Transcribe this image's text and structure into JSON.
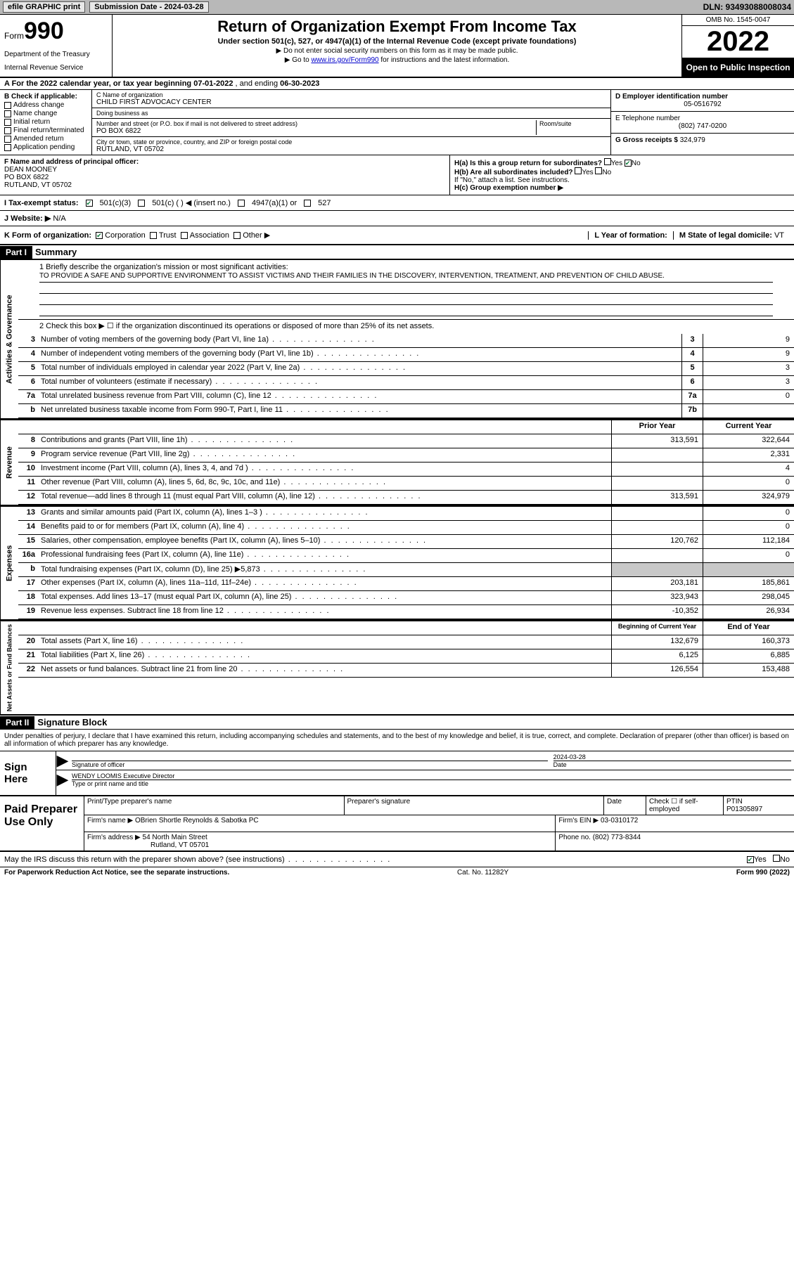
{
  "topbar": {
    "efile_label": "efile GRAPHIC print",
    "submission_label": "Submission Date - 2024-03-28",
    "dln": "DLN: 93493088008034"
  },
  "header": {
    "form_word": "Form",
    "form_number": "990",
    "title": "Return of Organization Exempt From Income Tax",
    "subtitle": "Under section 501(c), 527, or 4947(a)(1) of the Internal Revenue Code (except private foundations)",
    "note1": "▶ Do not enter social security numbers on this form as it may be made public.",
    "note2_prefix": "▶ Go to ",
    "note2_link": "www.irs.gov/Form990",
    "note2_suffix": " for instructions and the latest information.",
    "dept": "Department of the Treasury",
    "irs": "Internal Revenue Service",
    "omb": "OMB No. 1545-0047",
    "tax_year": "2022",
    "open_public": "Open to Public Inspection"
  },
  "row_a": {
    "prefix": "A For the 2022 calendar year, or tax year beginning ",
    "begin": "07-01-2022",
    "mid": " , and ending ",
    "end": "06-30-2023"
  },
  "col_b": {
    "header": "B Check if applicable:",
    "opts": [
      "Address change",
      "Name change",
      "Initial return",
      "Final return/terminated",
      "Amended return",
      "Application pending"
    ]
  },
  "col_c": {
    "name_label": "C Name of organization",
    "org_name": "CHILD FIRST ADVOCACY CENTER",
    "dba_label": "Doing business as",
    "dba": "",
    "street_label": "Number and street (or P.O. box if mail is not delivered to street address)",
    "room_label": "Room/suite",
    "street": "PO BOX 6822",
    "city_label": "City or town, state or province, country, and ZIP or foreign postal code",
    "city": "RUTLAND, VT  05702"
  },
  "col_de": {
    "d_label": "D Employer identification number",
    "ein": "05-0516792",
    "e_label": "E Telephone number",
    "phone": "(802) 747-0200",
    "g_label": "G Gross receipts $ ",
    "gross": "324,979"
  },
  "row_f": {
    "label": "F Name and address of principal officer:",
    "name": "DEAN MOONEY",
    "addr1": "PO BOX 6822",
    "addr2": "RUTLAND, VT  05702"
  },
  "row_h": {
    "ha_label": "H(a)  Is this a group return for subordinates?",
    "hb_label": "H(b)  Are all subordinates included?",
    "hb_note": "If \"No,\" attach a list. See instructions.",
    "hc_label": "H(c)  Group exemption number ▶",
    "yes": "Yes",
    "no": "No"
  },
  "row_i": {
    "label": "I  Tax-exempt status:",
    "opt1": "501(c)(3)",
    "opt2": "501(c) (  ) ◀ (insert no.)",
    "opt3": "4947(a)(1) or",
    "opt4": "527"
  },
  "row_j": {
    "label": "J  Website: ▶",
    "value": "  N/A"
  },
  "row_k": {
    "label": "K Form of organization:",
    "opts": [
      "Corporation",
      "Trust",
      "Association",
      "Other ▶"
    ],
    "l_label": "L Year of formation:",
    "l_val": "",
    "m_label": "M State of legal domicile: ",
    "m_val": "VT"
  },
  "part1": {
    "header": "Part I",
    "title": "Summary"
  },
  "mission": {
    "label": "1   Briefly describe the organization's mission or most significant activities:",
    "text": "TO PROVIDE A SAFE AND SUPPORTIVE ENVIRONMENT TO ASSIST VICTIMS AND THEIR FAMILIES IN THE DISCOVERY, INTERVENTION, TREATMENT, AND PREVENTION OF CHILD ABUSE."
  },
  "line2": "2   Check this box ▶ ☐  if the organization discontinued its operations or disposed of more than 25% of its net assets.",
  "governance_rows": [
    {
      "n": "3",
      "d": "Number of voting members of the governing body (Part VI, line 1a)",
      "box": "3",
      "v": "9"
    },
    {
      "n": "4",
      "d": "Number of independent voting members of the governing body (Part VI, line 1b)",
      "box": "4",
      "v": "9"
    },
    {
      "n": "5",
      "d": "Total number of individuals employed in calendar year 2022 (Part V, line 2a)",
      "box": "5",
      "v": "3"
    },
    {
      "n": "6",
      "d": "Total number of volunteers (estimate if necessary)",
      "box": "6",
      "v": "3"
    },
    {
      "n": "7a",
      "d": "Total unrelated business revenue from Part VIII, column (C), line 12",
      "box": "7a",
      "v": "0"
    },
    {
      "n": "b",
      "d": "Net unrelated business taxable income from Form 990-T, Part I, line 11",
      "box": "7b",
      "v": ""
    }
  ],
  "two_col_header": {
    "prior": "Prior Year",
    "current": "Current Year"
  },
  "revenue_rows": [
    {
      "n": "8",
      "d": "Contributions and grants (Part VIII, line 1h)",
      "p": "313,591",
      "c": "322,644"
    },
    {
      "n": "9",
      "d": "Program service revenue (Part VIII, line 2g)",
      "p": "",
      "c": "2,331"
    },
    {
      "n": "10",
      "d": "Investment income (Part VIII, column (A), lines 3, 4, and 7d )",
      "p": "",
      "c": "4"
    },
    {
      "n": "11",
      "d": "Other revenue (Part VIII, column (A), lines 5, 6d, 8c, 9c, 10c, and 11e)",
      "p": "",
      "c": "0"
    },
    {
      "n": "12",
      "d": "Total revenue—add lines 8 through 11 (must equal Part VIII, column (A), line 12)",
      "p": "313,591",
      "c": "324,979"
    }
  ],
  "expense_rows": [
    {
      "n": "13",
      "d": "Grants and similar amounts paid (Part IX, column (A), lines 1–3 )",
      "p": "",
      "c": "0"
    },
    {
      "n": "14",
      "d": "Benefits paid to or for members (Part IX, column (A), line 4)",
      "p": "",
      "c": "0"
    },
    {
      "n": "15",
      "d": "Salaries, other compensation, employee benefits (Part IX, column (A), lines 5–10)",
      "p": "120,762",
      "c": "112,184"
    },
    {
      "n": "16a",
      "d": "Professional fundraising fees (Part IX, column (A), line 11e)",
      "p": "",
      "c": "0"
    },
    {
      "n": "b",
      "d": "Total fundraising expenses (Part IX, column (D), line 25) ▶5,873",
      "p": "SHADE",
      "c": "SHADE"
    },
    {
      "n": "17",
      "d": "Other expenses (Part IX, column (A), lines 11a–11d, 11f–24e)",
      "p": "203,181",
      "c": "185,861"
    },
    {
      "n": "18",
      "d": "Total expenses. Add lines 13–17 (must equal Part IX, column (A), line 25)",
      "p": "323,943",
      "c": "298,045"
    },
    {
      "n": "19",
      "d": "Revenue less expenses. Subtract line 18 from line 12",
      "p": "-10,352",
      "c": "26,934"
    }
  ],
  "net_header": {
    "begin": "Beginning of Current Year",
    "end": "End of Year"
  },
  "net_rows": [
    {
      "n": "20",
      "d": "Total assets (Part X, line 16)",
      "p": "132,679",
      "c": "160,373"
    },
    {
      "n": "21",
      "d": "Total liabilities (Part X, line 26)",
      "p": "6,125",
      "c": "6,885"
    },
    {
      "n": "22",
      "d": "Net assets or fund balances. Subtract line 21 from line 20",
      "p": "126,554",
      "c": "153,488"
    }
  ],
  "vert_labels": {
    "gov": "Activities & Governance",
    "rev": "Revenue",
    "exp": "Expenses",
    "net": "Net Assets or Fund Balances"
  },
  "part2": {
    "header": "Part II",
    "title": "Signature Block"
  },
  "sig_decl": "Under penalties of perjury, I declare that I have examined this return, including accompanying schedules and statements, and to the best of my knowledge and belief, it is true, correct, and complete. Declaration of preparer (other than officer) is based on all information of which preparer has any knowledge.",
  "sign_here": "Sign Here",
  "sig_officer_label": "Signature of officer",
  "sig_date": "2024-03-28",
  "sig_date_label": "Date",
  "sig_name": "WENDY LOOMIS  Executive Director",
  "sig_name_label": "Type or print name and title",
  "paid_prep": "Paid Preparer Use Only",
  "prep": {
    "print_label": "Print/Type preparer's name",
    "print_name": "",
    "sig_label": "Preparer's signature",
    "date_label": "Date",
    "self_emp": "Check ☐ if self-employed",
    "ptin_label": "PTIN",
    "ptin": "P01305897",
    "firm_name_label": "Firm's name      ▶ ",
    "firm_name": "OBrien Shortle Reynolds & Sabotka PC",
    "firm_ein_label": "Firm's EIN ▶ ",
    "firm_ein": "03-0310172",
    "firm_addr_label": "Firm's address ▶ ",
    "firm_addr1": "54 North Main Street",
    "firm_addr2": "Rutland, VT  05701",
    "phone_label": "Phone no. ",
    "phone": "(802) 773-8344"
  },
  "discuss": {
    "q": "May the IRS discuss this return with the preparer shown above? (see instructions)",
    "yes": "Yes",
    "no": "No"
  },
  "footer": {
    "left": "For Paperwork Reduction Act Notice, see the separate instructions.",
    "mid": "Cat. No. 11282Y",
    "right": "Form 990 (2022)"
  }
}
